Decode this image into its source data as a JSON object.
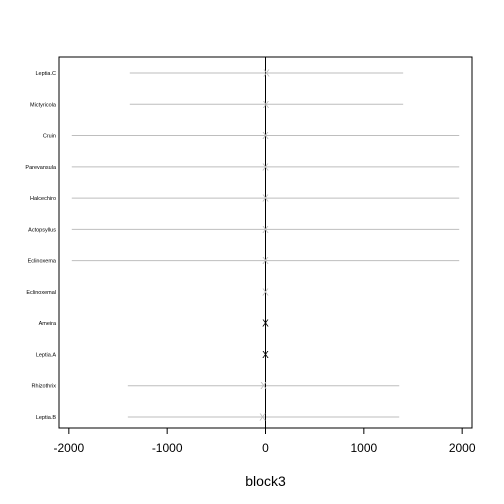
{
  "chart_data": {
    "type": "scatter",
    "title": "",
    "xlabel": "block3",
    "ylabel": "",
    "xlim": [
      -2100,
      2100
    ],
    "xticks": [
      -2000,
      -1000,
      0,
      1000,
      2000
    ],
    "xtick_labels": [
      "-2000",
      "-1000",
      "0",
      "1000",
      "2000"
    ],
    "reference_line_x": 0,
    "grid": false,
    "legend": "none",
    "colors": {
      "interval": "#bebebe",
      "point_faint": "#bebebe",
      "point_strong": "#000000",
      "frame": "#000000"
    },
    "categories": [
      "Leptia.C",
      "Mictyricola",
      "Cruin",
      "Parevansula",
      "Halcechiro",
      "Actopsyllus",
      "Eclinoxema",
      "Eclinoxemal",
      "Ameira",
      "Leptia.A",
      "Rhizothrix",
      "Leptia.B"
    ],
    "points": [
      {
        "label": "Leptia.C",
        "estimate": 10,
        "lower": -1380,
        "upper": 1400,
        "marker": "X",
        "emphasis": false
      },
      {
        "label": "Mictyricola",
        "estimate": 5,
        "lower": -1380,
        "upper": 1400,
        "marker": "X",
        "emphasis": false
      },
      {
        "label": "Cruin",
        "estimate": 0,
        "lower": -1970,
        "upper": 1970,
        "marker": "X",
        "emphasis": false
      },
      {
        "label": "Parevansula",
        "estimate": 0,
        "lower": -1970,
        "upper": 1970,
        "marker": "X",
        "emphasis": false
      },
      {
        "label": "Halcechiro",
        "estimate": 0,
        "lower": -1970,
        "upper": 1970,
        "marker": "X",
        "emphasis": false
      },
      {
        "label": "Actopsyllus",
        "estimate": 0,
        "lower": -1970,
        "upper": 1970,
        "marker": "X",
        "emphasis": false
      },
      {
        "label": "Eclinoxema",
        "estimate": 0,
        "lower": -1970,
        "upper": 1970,
        "marker": "X",
        "emphasis": false
      },
      {
        "label": "Eclinoxemal",
        "estimate": 0,
        "lower": null,
        "upper": null,
        "marker": "X",
        "emphasis": false
      },
      {
        "label": "Ameira",
        "estimate": 0,
        "lower": null,
        "upper": null,
        "marker": "X",
        "emphasis": true
      },
      {
        "label": "Leptia.A",
        "estimate": 0,
        "lower": null,
        "upper": null,
        "marker": "X",
        "emphasis": true
      },
      {
        "label": "Rhizothrix",
        "estimate": -20,
        "lower": -1400,
        "upper": 1360,
        "marker": "X",
        "emphasis": false
      },
      {
        "label": "Leptia.B",
        "estimate": -30,
        "lower": -1400,
        "upper": 1360,
        "marker": "X",
        "emphasis": false
      }
    ]
  }
}
